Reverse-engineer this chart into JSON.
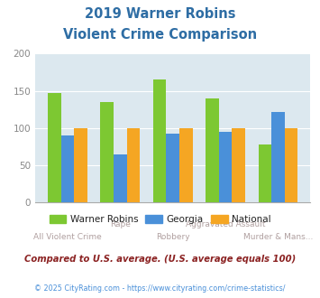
{
  "title_line1": "2019 Warner Robins",
  "title_line2": "Violent Crime Comparison",
  "title_color": "#2e6da4",
  "categories_top": [
    "",
    "Rape",
    "",
    "Aggravated Assault",
    ""
  ],
  "categories_bot": [
    "All Violent Crime",
    "",
    "Robbery",
    "",
    "Murder & Mans..."
  ],
  "warner_robins": [
    147,
    135,
    165,
    140,
    78
  ],
  "georgia": [
    90,
    65,
    93,
    95,
    122
  ],
  "national": [
    100,
    100,
    100,
    100,
    100
  ],
  "warner_robins_color": "#7dc832",
  "georgia_color": "#4a90d9",
  "national_color": "#f5a623",
  "ylim": [
    0,
    200
  ],
  "yticks": [
    0,
    50,
    100,
    150,
    200
  ],
  "plot_bg_color": "#dce8ef",
  "fig_bg_color": "#ffffff",
  "grid_color": "#ffffff",
  "legend_labels": [
    "Warner Robins",
    "Georgia",
    "National"
  ],
  "footnote1": "Compared to U.S. average. (U.S. average equals 100)",
  "footnote2": "© 2025 CityRating.com - https://www.cityrating.com/crime-statistics/",
  "footnote1_color": "#8b2222",
  "footnote2_color": "#4a90d9",
  "xtick_color": "#b0a0a0",
  "ytick_color": "#888888",
  "bar_width": 0.25
}
